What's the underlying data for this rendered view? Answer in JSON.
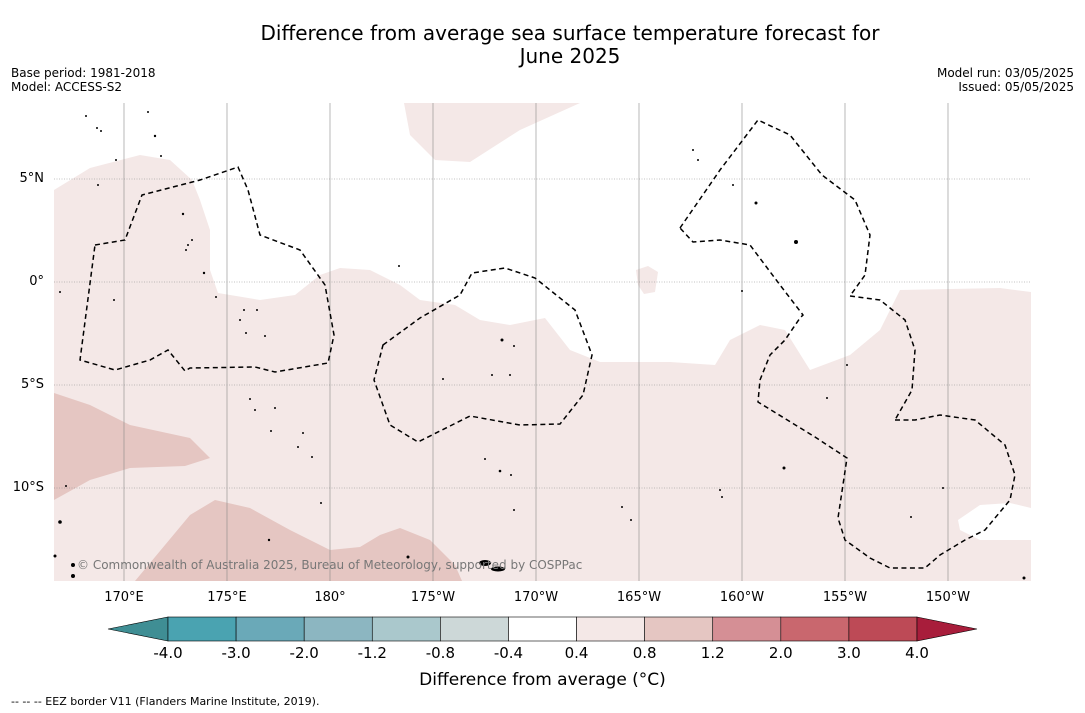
{
  "title_line1": "Difference from average sea surface temperature forecast for",
  "title_line2": "June 2025",
  "meta_left": [
    "Base period: 1981-2018",
    "Model: ACCESS-S2"
  ],
  "meta_right": [
    "Model run: 03/05/2025",
    "Issued: 05/05/2025"
  ],
  "lat_labels": [
    "5°N",
    "0°",
    "5°S",
    "10°S"
  ],
  "lon_labels": [
    "170°E",
    "175°E",
    "180°",
    "175°W",
    "170°W",
    "165°W",
    "160°W",
    "155°W",
    "150°W"
  ],
  "copyright": "© Commonwealth of Australia 2025, Bureau of Meteorology, supported by COSPPac",
  "colorbar": {
    "ticks": [
      "-4.0",
      "-3.0",
      "-2.0",
      "-1.2",
      "-0.8",
      "-0.4",
      "0.4",
      "0.8",
      "1.2",
      "2.0",
      "3.0",
      "4.0"
    ],
    "colors": [
      "#3f8e94",
      "#4aa3b1",
      "#6aa9b8",
      "#8cb6c1",
      "#aac8cc",
      "#cdd8d8",
      "#ffffff",
      "#f4e8e7",
      "#e5c6c2",
      "#d58f95",
      "#c9676e",
      "#bd4a56",
      "#a81d3b"
    ],
    "label": "Difference from average (°C)"
  },
  "footnote": "--  --  -- EEZ border V11 (Flanders Marine Institute, 2019)."
}
